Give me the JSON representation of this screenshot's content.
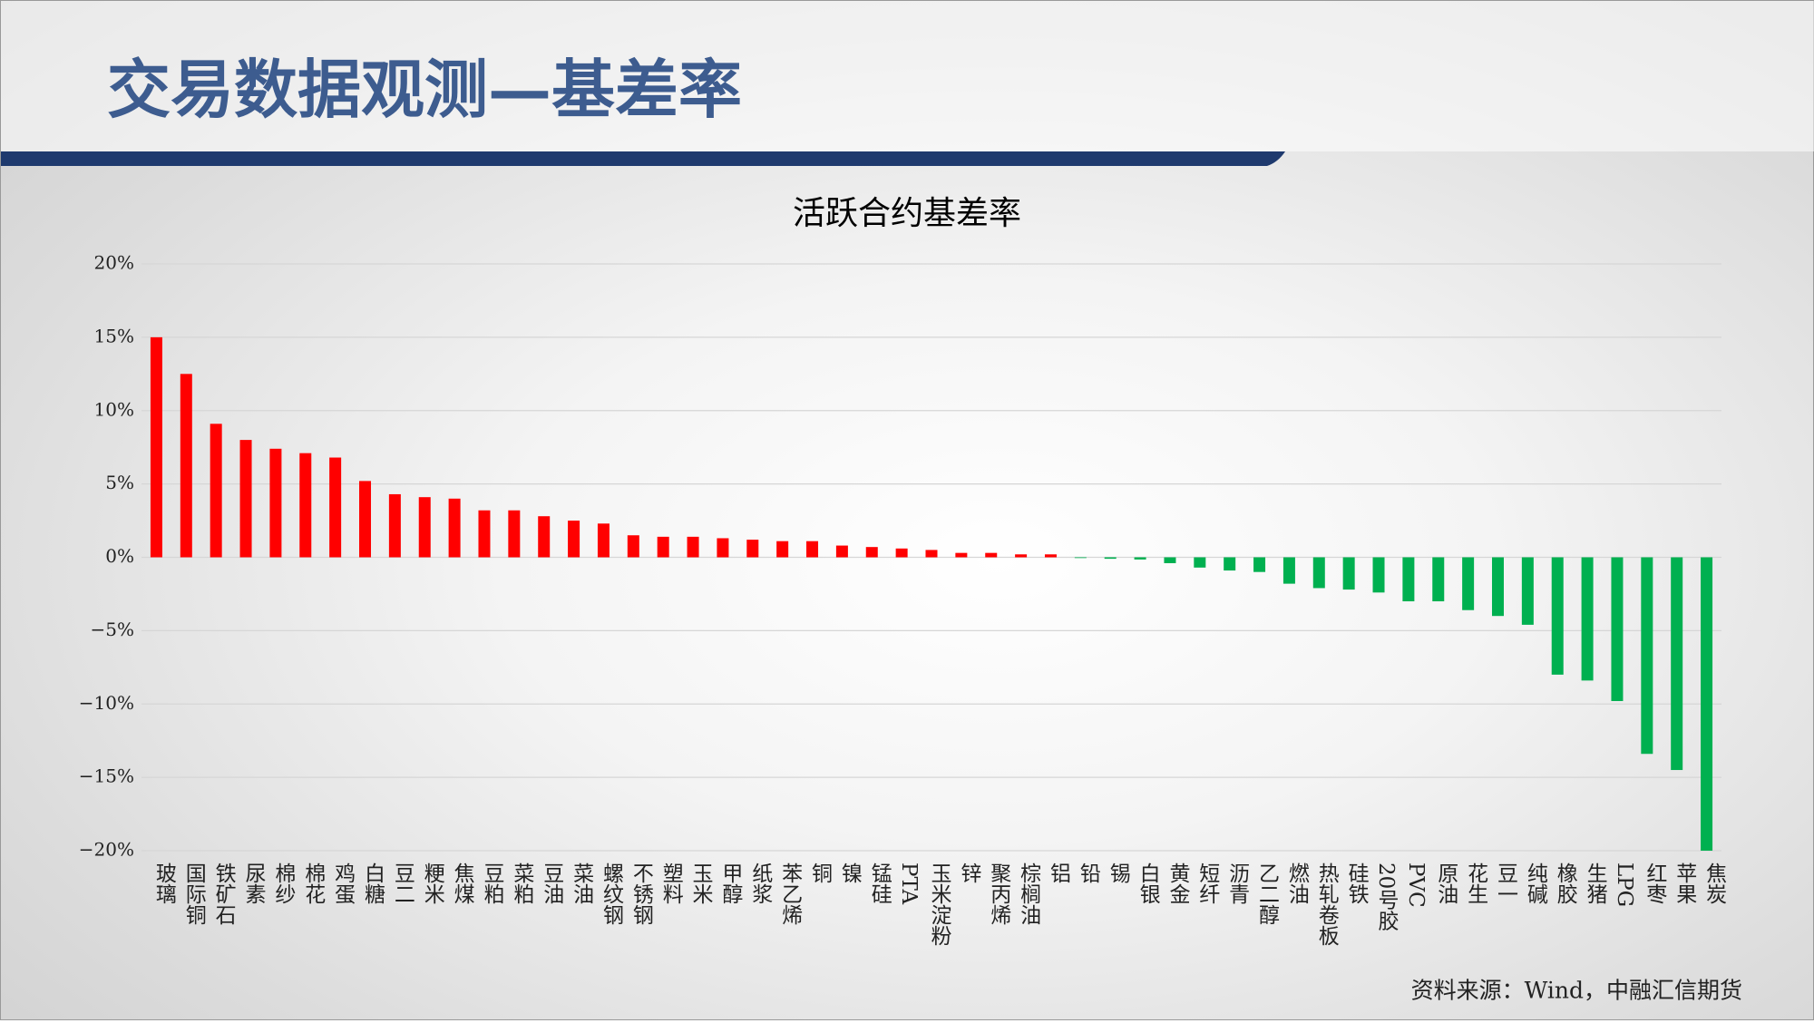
{
  "slide": {
    "title": "交易数据观测—基差率",
    "source": "资料来源：Wind，中融汇信期货"
  },
  "chart_data": {
    "type": "bar",
    "title": "活跃合约基差率",
    "categories": [
      "玻璃",
      "国际铜",
      "铁矿石",
      "尿素",
      "棉纱",
      "棉花",
      "鸡蛋",
      "白糖",
      "豆二",
      "粳米",
      "焦煤",
      "豆粕",
      "菜粕",
      "豆油",
      "菜油",
      "螺纹钢",
      "不锈钢",
      "塑料",
      "玉米",
      "甲醇",
      "纸浆",
      "苯乙烯",
      "铜",
      "镍",
      "锰硅",
      "PTA",
      "玉米淀粉",
      "锌",
      "聚丙烯",
      "棕榈油",
      "铝",
      "铅",
      "锡",
      "白银",
      "黄金",
      "短纤",
      "沥青",
      "乙二醇",
      "燃油",
      "热轧卷板",
      "硅铁",
      "20号胶",
      "PVC",
      "原油",
      "花生",
      "豆一",
      "纯碱",
      "橡胶",
      "生猪",
      "LPG",
      "红枣",
      "苹果",
      "焦炭"
    ],
    "values": [
      15,
      12.5,
      9.1,
      8.0,
      7.4,
      7.1,
      6.8,
      5.2,
      4.3,
      4.1,
      4.0,
      3.2,
      3.2,
      2.8,
      2.5,
      2.3,
      1.5,
      1.4,
      1.4,
      1.3,
      1.2,
      1.1,
      1.1,
      0.8,
      0.7,
      0.6,
      0.5,
      0.3,
      0.3,
      0.2,
      0.2,
      -0.05,
      -0.1,
      -0.15,
      -0.4,
      -0.7,
      -0.9,
      -1.0,
      -1.8,
      -2.1,
      -2.2,
      -2.4,
      -3.0,
      -3.0,
      -3.6,
      -4.0,
      -4.6,
      -8.0,
      -8.4,
      -9.8,
      -13.4,
      -14.5,
      -20.0
    ],
    "colors": {
      "positive": "#ff0000",
      "negative": "#00b050"
    },
    "ylim": [
      -20,
      20
    ],
    "yticks": [
      {
        "value": -20,
        "label": "−20%"
      },
      {
        "value": -15,
        "label": "−15%"
      },
      {
        "value": -10,
        "label": "−10%"
      },
      {
        "value": -5,
        "label": "−5%"
      },
      {
        "value": 0,
        "label": "0%"
      },
      {
        "value": 5,
        "label": "5%"
      },
      {
        "value": 10,
        "label": "10%"
      },
      {
        "value": 15,
        "label": "15%"
      },
      {
        "value": 20,
        "label": "20%"
      }
    ],
    "grid": true
  }
}
